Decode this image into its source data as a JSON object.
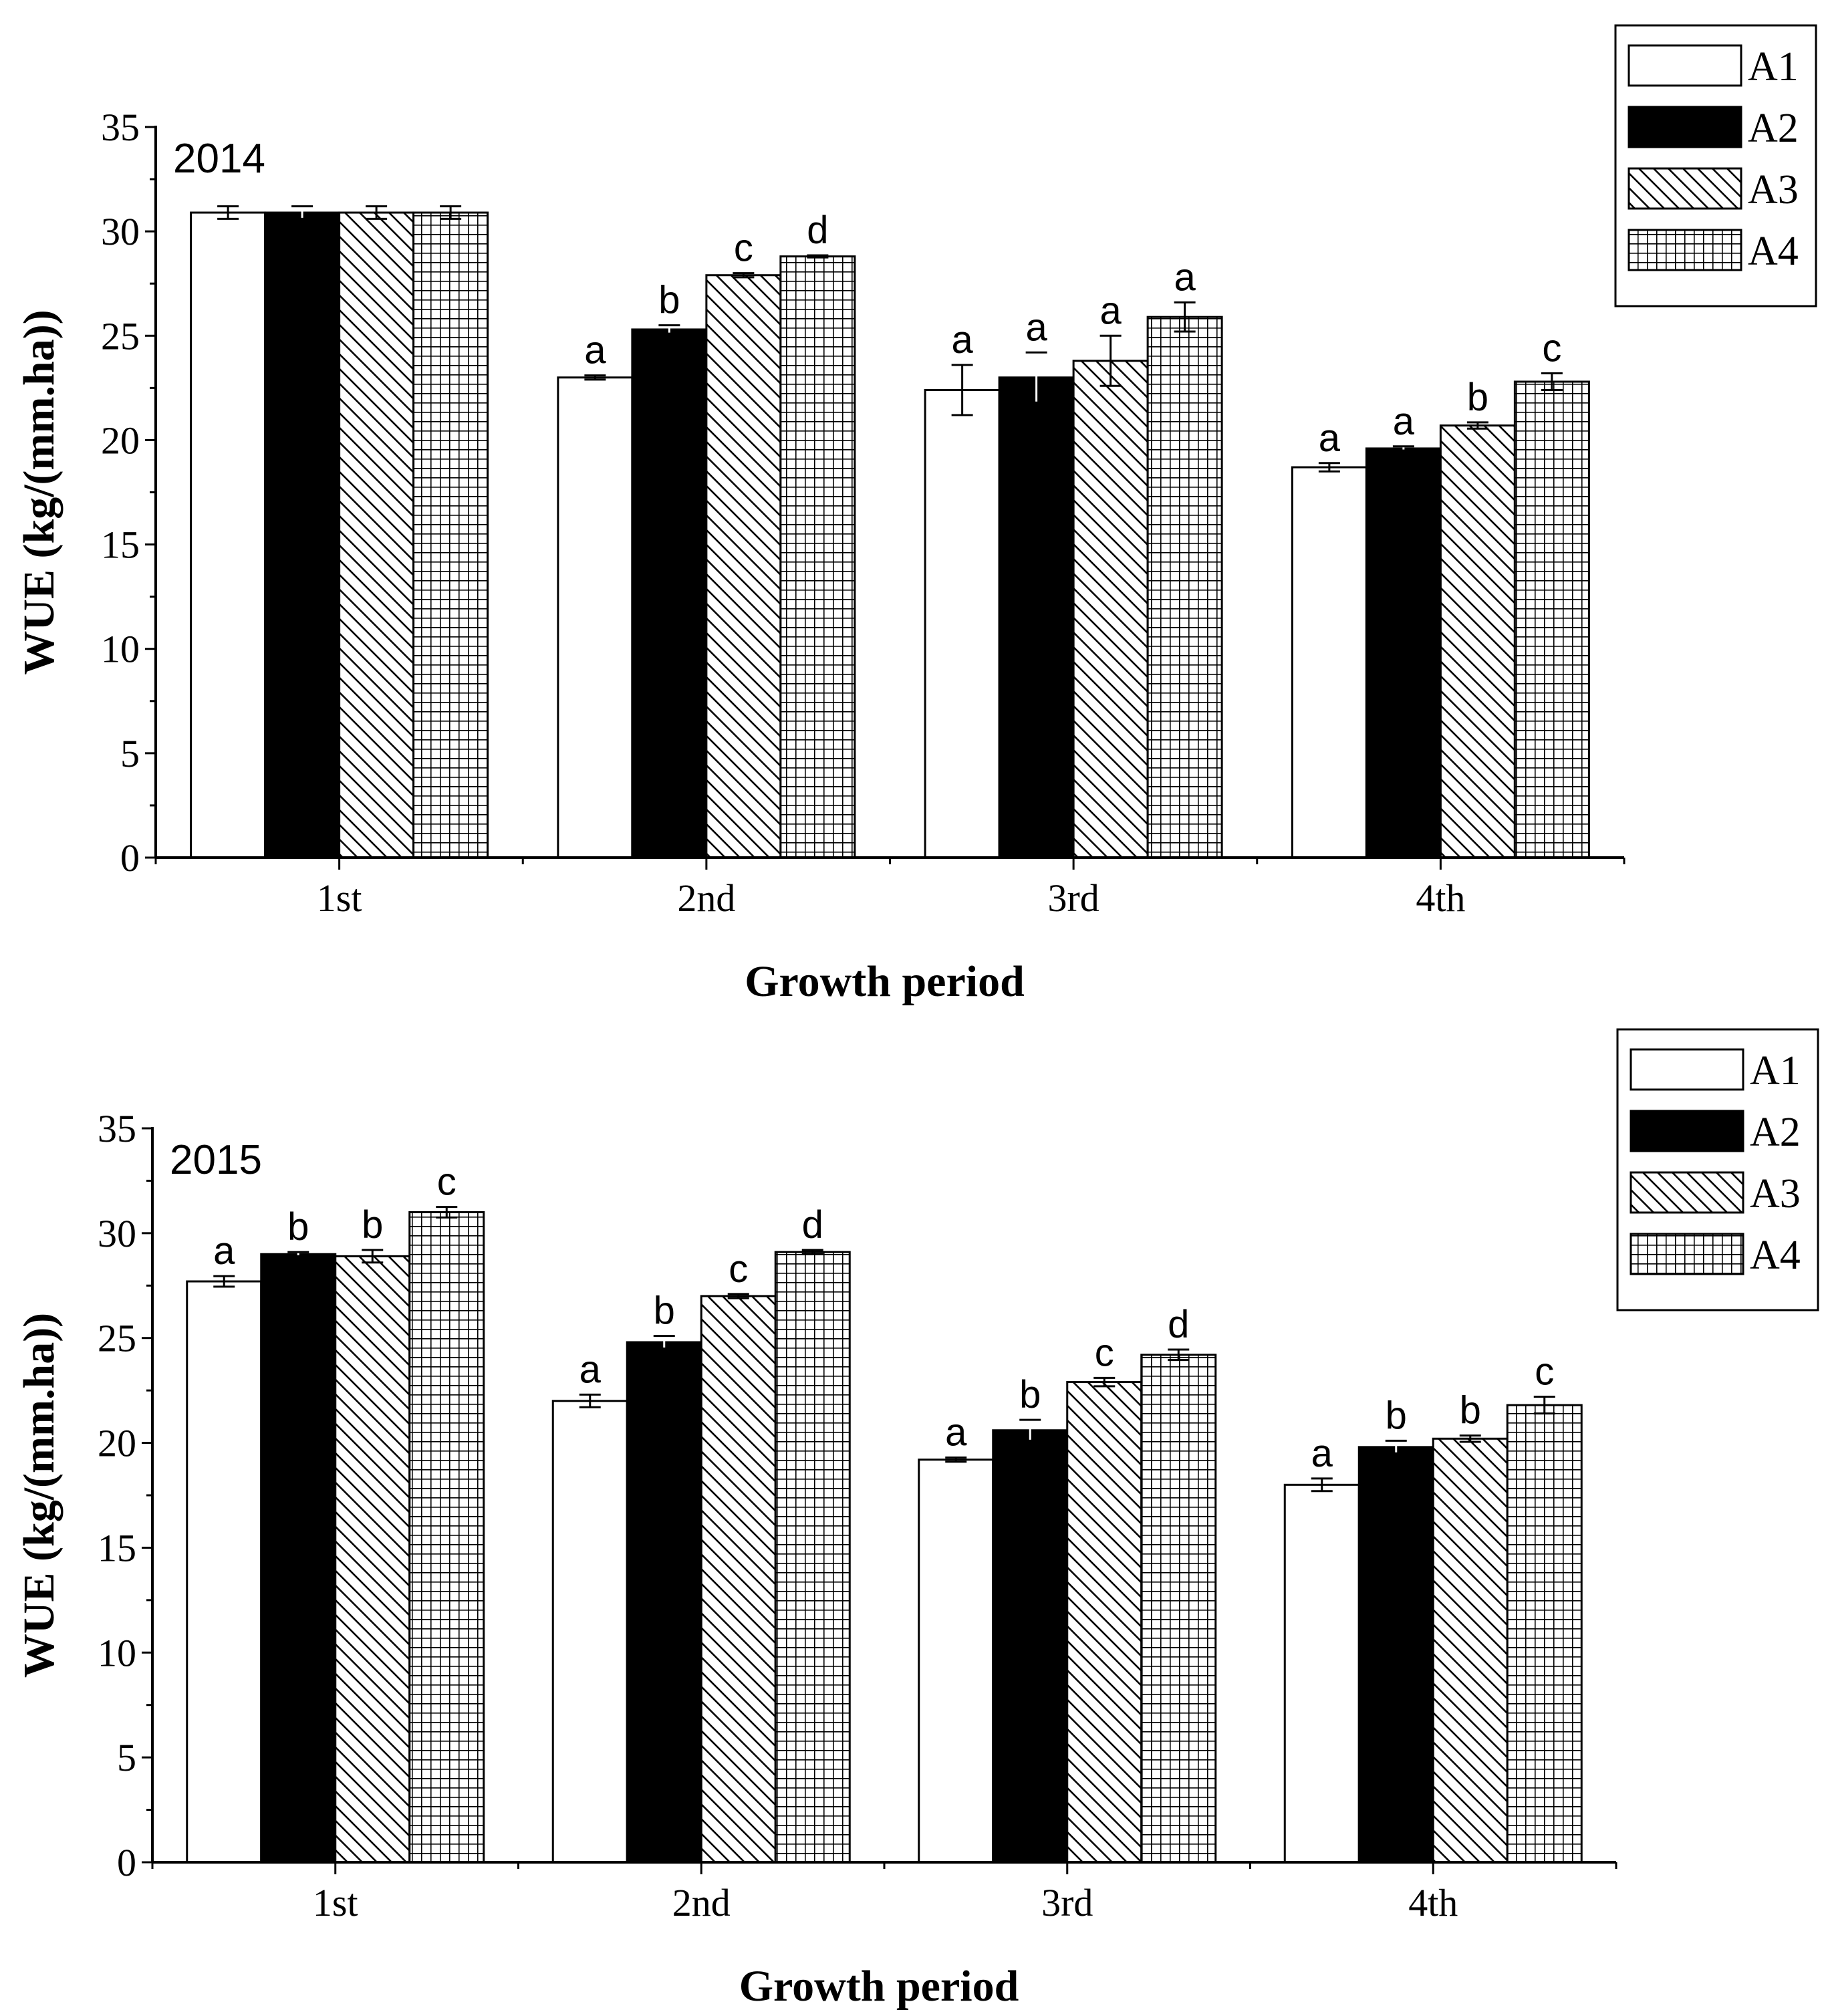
{
  "chart_data": [
    {
      "type": "bar",
      "panel_label": "2014",
      "categories": [
        "1st",
        "2nd",
        "3rd",
        "4th"
      ],
      "xlabel": "Growth period",
      "ylabel": "WUE (kg/(mm.ha))",
      "ylim": [
        0,
        35
      ],
      "yticks": [
        "0",
        "5",
        "10",
        "15",
        "20",
        "25",
        "30",
        "35"
      ],
      "legend_position": "top-right, outside",
      "series": [
        {
          "name": "A1",
          "pattern": "white",
          "values": [
            30.9,
            23.0,
            22.4,
            18.7
          ],
          "errors": [
            0.3,
            0.1,
            1.2,
            0.2
          ],
          "labels": [
            "",
            "a",
            "a",
            "a"
          ]
        },
        {
          "name": "A2",
          "pattern": "black",
          "values": [
            30.9,
            25.3,
            23.0,
            19.6
          ],
          "errors": [
            0.3,
            0.2,
            1.2,
            0.1
          ],
          "labels": [
            "",
            "b",
            "a",
            "a"
          ]
        },
        {
          "name": "A3",
          "pattern": "diagonal",
          "values": [
            30.9,
            27.9,
            23.8,
            20.7
          ],
          "errors": [
            0.3,
            0.1,
            1.2,
            0.15
          ],
          "labels": [
            "",
            "c",
            "a",
            "b"
          ]
        },
        {
          "name": "A4",
          "pattern": "grid",
          "values": [
            30.9,
            28.8,
            25.9,
            22.8
          ],
          "errors": [
            0.3,
            0.05,
            0.7,
            0.4
          ],
          "labels": [
            "",
            "d",
            "a",
            "c"
          ]
        }
      ]
    },
    {
      "type": "bar",
      "panel_label": "2015",
      "categories": [
        "1st",
        "2nd",
        "3rd",
        "4th"
      ],
      "xlabel": "Growth period",
      "ylabel": "WUE (kg/(mm.ha))",
      "ylim": [
        0,
        35
      ],
      "yticks": [
        "0",
        "5",
        "10",
        "15",
        "20",
        "25",
        "30",
        "35"
      ],
      "legend_position": "top-right, outside",
      "series": [
        {
          "name": "A1",
          "pattern": "white",
          "values": [
            27.7,
            22.0,
            19.2,
            18.0
          ],
          "errors": [
            0.25,
            0.3,
            0.1,
            0.3
          ],
          "labels": [
            "a",
            "a",
            "a",
            "a"
          ]
        },
        {
          "name": "A2",
          "pattern": "black",
          "values": [
            29.0,
            24.8,
            20.6,
            19.8
          ],
          "errors": [
            0.1,
            0.3,
            0.5,
            0.3
          ],
          "labels": [
            "b",
            "b",
            "b",
            "b"
          ]
        },
        {
          "name": "A3",
          "pattern": "diagonal",
          "values": [
            28.9,
            27.0,
            22.9,
            20.2
          ],
          "errors": [
            0.3,
            0.1,
            0.2,
            0.15
          ],
          "labels": [
            "b",
            "c",
            "c",
            "b"
          ]
        },
        {
          "name": "A4",
          "pattern": "grid",
          "values": [
            31.0,
            29.1,
            24.2,
            21.8
          ],
          "errors": [
            0.25,
            0.1,
            0.25,
            0.4
          ],
          "labels": [
            "c",
            "d",
            "d",
            "c"
          ]
        }
      ]
    }
  ]
}
